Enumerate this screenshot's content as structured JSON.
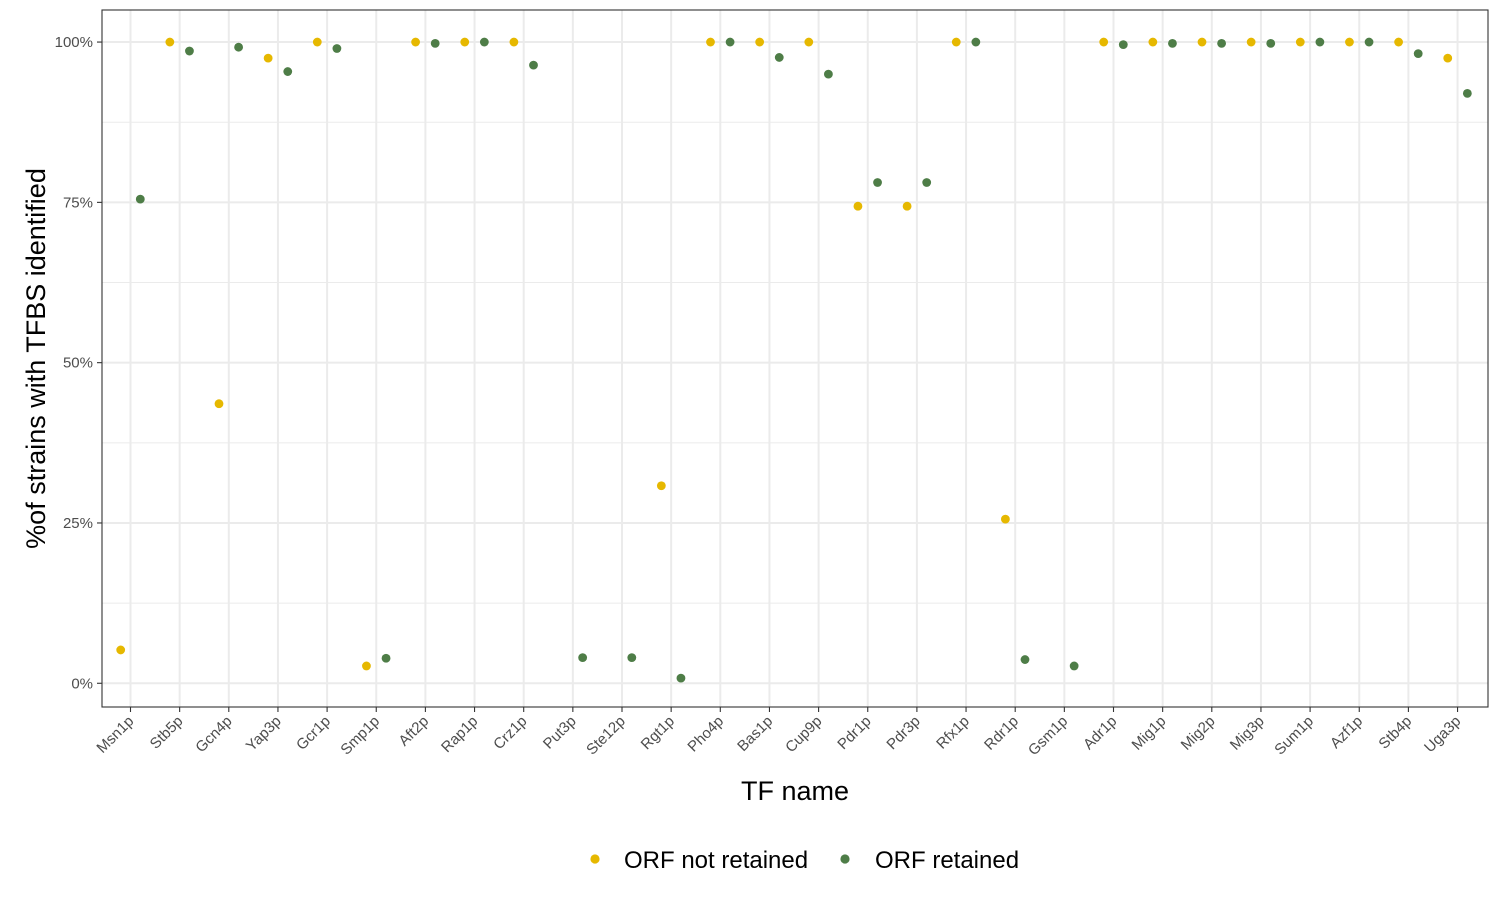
{
  "chart_data": {
    "type": "scatter",
    "title": "",
    "xlabel": "TF name",
    "ylabel": "%of strains with TFBS identified",
    "ylim": [
      -3.7,
      105
    ],
    "yticks": [
      0,
      25,
      50,
      75,
      100
    ],
    "ytick_labels": [
      "0%",
      "25%",
      "50%",
      "75%",
      "100%"
    ],
    "grid": true,
    "legend_position": "bottom",
    "categories": [
      "Msn1p",
      "Stb5p",
      "Gcn4p",
      "Yap3p",
      "Gcr1p",
      "Smp1p",
      "Aft2p",
      "Rap1p",
      "Crz1p",
      "Put3p",
      "Ste12p",
      "Rgt1p",
      "Pho4p",
      "Bas1p",
      "Cup9p",
      "Pdr1p",
      "Pdr3p",
      "Rfx1p",
      "Rdr1p",
      "Gsm1p",
      "Adr1p",
      "Mig1p",
      "Mig2p",
      "Mig3p",
      "Sum1p",
      "Azf1p",
      "Stb4p",
      "Uga3p"
    ],
    "series": [
      {
        "name": "ORF not retained",
        "color": "#E6B800",
        "values": [
          5.2,
          100,
          43.6,
          97.5,
          100,
          2.7,
          100,
          100,
          100,
          null,
          null,
          30.8,
          100,
          100,
          100,
          74.4,
          74.4,
          100,
          25.6,
          null,
          100,
          100,
          100,
          100,
          100,
          100,
          100,
          97.5
        ]
      },
      {
        "name": "ORF retained",
        "color": "#4E7D47",
        "values": [
          75.5,
          98.6,
          99.2,
          95.4,
          99.0,
          3.9,
          99.8,
          100,
          96.4,
          4.0,
          4.0,
          0.8,
          100,
          97.6,
          95.0,
          78.1,
          78.1,
          100,
          3.7,
          2.7,
          99.6,
          99.8,
          99.8,
          99.8,
          100,
          100,
          98.2,
          92.0
        ]
      }
    ]
  }
}
